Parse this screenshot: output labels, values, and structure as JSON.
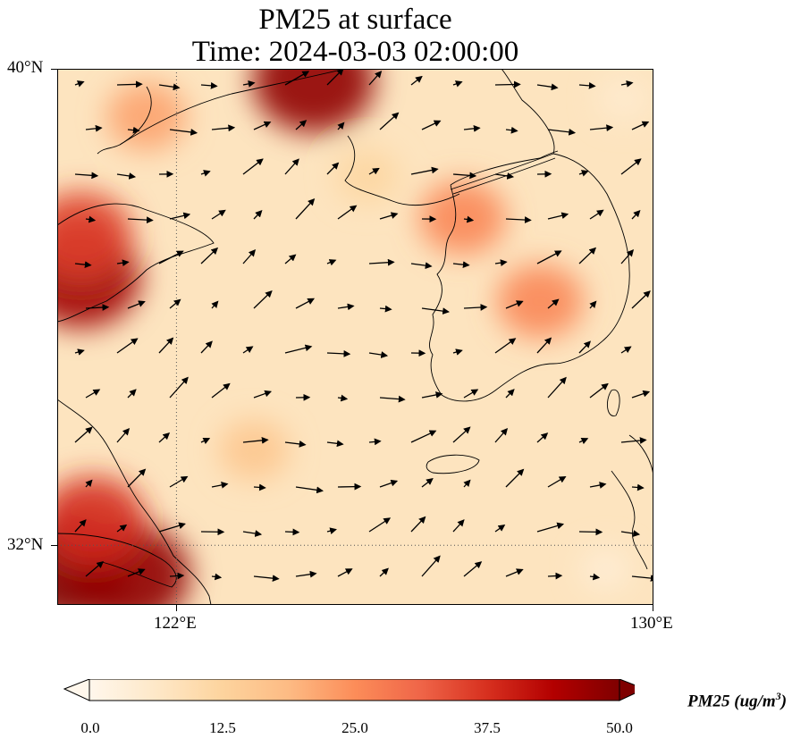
{
  "title": {
    "line1": "PM25 at surface",
    "line2": "Time: 2024-03-03 02:00:00"
  },
  "map": {
    "lat_labels": [
      "40°N",
      "32°N"
    ],
    "lon_labels": [
      "122°E",
      "130°E"
    ],
    "lon_range": [
      120.0,
      130.0
    ],
    "lat_range": [
      31.0,
      40.0
    ],
    "gridlines": {
      "lon": 122.0,
      "lat": 32.0,
      "style": "dotted"
    },
    "colormap": "OrRd",
    "features": [
      "coastlines",
      "country-borders",
      "pm25-field",
      "wind-vectors"
    ]
  },
  "colorbar": {
    "ticks": [
      "0.0",
      "12.5",
      "25.0",
      "37.5",
      "50.0"
    ],
    "min": 0.0,
    "max": 50.0,
    "label_prefix": "PM25 (ug/m",
    "label_sup": "3",
    "label_suffix": ")",
    "extend": "both",
    "colors": [
      "#fff7ec",
      "#fee8c8",
      "#fdd49e",
      "#fdbb84",
      "#fc8d59",
      "#ef6548",
      "#d7301f",
      "#b30000",
      "#7f0000"
    ]
  },
  "chart_data": {
    "type": "heatmap",
    "title": "PM25 at surface\nTime: 2024-03-03 02:00:00",
    "xlabel": "",
    "ylabel": "",
    "x_ticks": [
      "122°E",
      "130°E"
    ],
    "y_ticks": [
      "40°N",
      "32°N"
    ],
    "colorbar_label": "PM25 (ug/m^3)",
    "value_range": [
      0.0,
      50.0
    ],
    "approximate_hotspots": [
      {
        "lon": 120.2,
        "lat": 31.6,
        "pm25": 50
      },
      {
        "lon": 121.2,
        "lat": 31.5,
        "pm25": 48
      },
      {
        "lon": 120.6,
        "lat": 32.4,
        "pm25": 38
      },
      {
        "lon": 120.4,
        "lat": 36.5,
        "pm25": 46
      },
      {
        "lon": 120.4,
        "lat": 37.2,
        "pm25": 36
      },
      {
        "lon": 124.3,
        "lat": 39.8,
        "pm25": 48
      },
      {
        "lon": 121.5,
        "lat": 39.2,
        "pm25": 22
      },
      {
        "lon": 126.8,
        "lat": 37.5,
        "pm25": 26
      },
      {
        "lon": 128.1,
        "lat": 36.1,
        "pm25": 26
      },
      {
        "lon": 123.3,
        "lat": 33.6,
        "pm25": 16
      },
      {
        "lon": 125.2,
        "lat": 38.2,
        "pm25": 12
      },
      {
        "lon": 129.5,
        "lat": 39.5,
        "pm25": 5
      },
      {
        "lon": 129.2,
        "lat": 31.6,
        "pm25": 4
      }
    ]
  }
}
